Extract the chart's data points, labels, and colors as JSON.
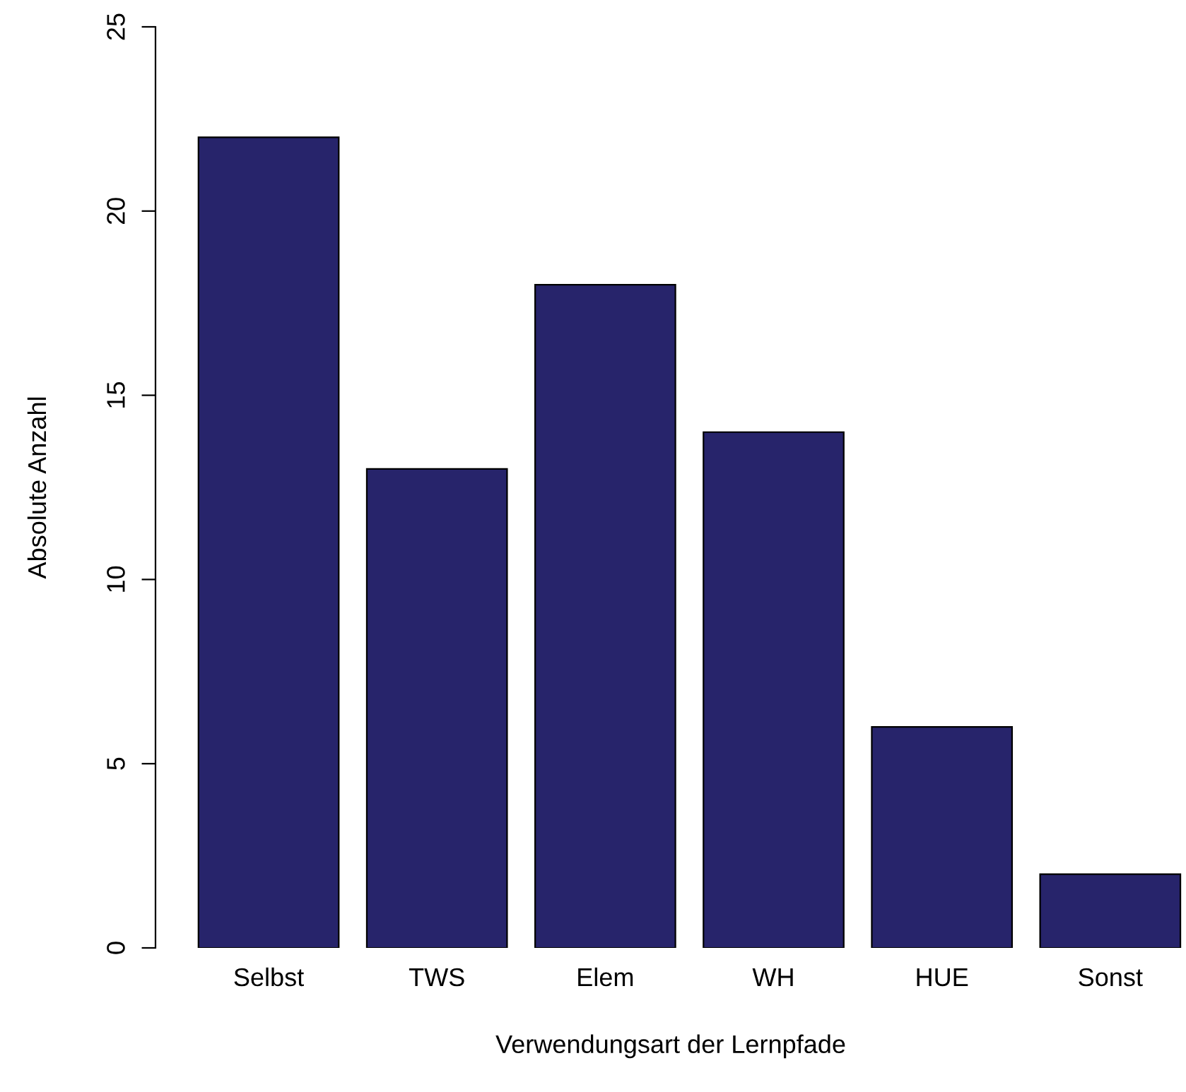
{
  "chart_data": {
    "type": "bar",
    "xlabel": "Verwendungsart der Lernpfade",
    "ylabel": "Absolute Anzahl",
    "categories": [
      "Selbst",
      "TWS",
      "Elem",
      "WH",
      "HUE",
      "Sonst"
    ],
    "values": [
      22,
      13,
      18,
      14,
      6,
      2
    ],
    "color": "#27246b",
    "ylim": [
      0,
      25
    ],
    "yticks": [
      0,
      5,
      10,
      15,
      20,
      25
    ],
    "grid": false
  }
}
